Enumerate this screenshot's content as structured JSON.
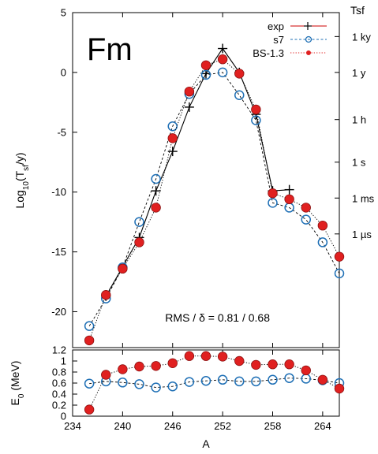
{
  "chart_data": [
    {
      "type": "line",
      "panel": "upper",
      "label": "Fm",
      "ylabel": "Log10(Tsf/y)",
      "right_axis_title": "Tsf",
      "right_ticks": [
        {
          "label": "1 ky",
          "value": 3
        },
        {
          "label": "1 y",
          "value": 0
        },
        {
          "label": "1 h",
          "value": -3.94
        },
        {
          "label": "1 s",
          "value": -7.5
        },
        {
          "label": "1 ms",
          "value": -10.5
        },
        {
          "label": "1 µs",
          "value": -13.5
        }
      ],
      "xlim": [
        234,
        266
      ],
      "ylim": [
        -23,
        5
      ],
      "xticks": [
        234,
        240,
        246,
        252,
        258,
        264
      ],
      "yticks": [
        5,
        0,
        -5,
        -10,
        -15,
        -20
      ],
      "annotation": "RMS / δ = 0.81 / 0.68",
      "legend_position": "top-right",
      "series": [
        {
          "name": "exp",
          "color": "#cc0000",
          "marker": "plus",
          "line": "solid",
          "x": [
            238,
            242,
            244,
            246,
            248,
            250,
            252,
            254,
            256,
            258,
            260
          ],
          "y": [
            -18.7,
            -13.8,
            -9.9,
            -6.6,
            -2.9,
            -0.1,
            2.0,
            0.0,
            -3.5,
            -9.9,
            -9.8
          ]
        },
        {
          "name": "s7",
          "color": "#1e6fb5",
          "marker": "circle-open",
          "line": "dashed",
          "x": [
            236,
            238,
            240,
            242,
            244,
            246,
            248,
            250,
            252,
            254,
            256,
            258,
            260,
            262,
            264,
            266
          ],
          "y": [
            -21.2,
            -18.9,
            -16.3,
            -12.5,
            -8.9,
            -4.5,
            -1.8,
            -0.2,
            0.0,
            -1.9,
            -4.0,
            -10.9,
            -11.3,
            -12.3,
            -14.2,
            -16.8
          ]
        },
        {
          "name": "BS-1.3",
          "color": "#e02020",
          "marker": "circle-filled",
          "line": "dotted",
          "x": [
            236,
            238,
            240,
            242,
            244,
            246,
            248,
            250,
            252,
            254,
            256,
            258,
            260,
            262,
            264,
            266
          ],
          "y": [
            -22.4,
            -18.6,
            -16.4,
            -14.2,
            -11.3,
            -5.5,
            -1.6,
            0.6,
            1.1,
            -0.1,
            -3.1,
            -10.1,
            -10.6,
            -11.3,
            -12.8,
            -15.4
          ]
        }
      ]
    },
    {
      "type": "line",
      "panel": "lower",
      "xlabel": "A",
      "ylabel": "E0 (MeV)",
      "xlim": [
        234,
        266
      ],
      "ylim": [
        0,
        1.2
      ],
      "xticks": [
        234,
        240,
        246,
        252,
        258,
        264
      ],
      "yticks": [
        0,
        0.2,
        0.4,
        0.6,
        0.8,
        1,
        1.2
      ],
      "series": [
        {
          "name": "s7",
          "color": "#1e6fb5",
          "marker": "circle-open",
          "line": "dashed",
          "x": [
            236,
            238,
            240,
            242,
            244,
            246,
            248,
            250,
            252,
            254,
            256,
            258,
            260,
            262,
            264,
            266
          ],
          "y": [
            0.59,
            0.63,
            0.61,
            0.58,
            0.52,
            0.54,
            0.62,
            0.64,
            0.66,
            0.63,
            0.63,
            0.66,
            0.69,
            0.68,
            0.65,
            0.6
          ]
        },
        {
          "name": "BS-1.3",
          "color": "#e02020",
          "marker": "circle-filled",
          "line": "dotted",
          "x": [
            236,
            238,
            240,
            242,
            244,
            246,
            248,
            250,
            252,
            254,
            256,
            258,
            260,
            262,
            264,
            266
          ],
          "y": [
            0.12,
            0.75,
            0.85,
            0.9,
            0.91,
            0.96,
            1.09,
            1.09,
            1.08,
            1.0,
            0.93,
            0.94,
            0.94,
            0.83,
            0.66,
            0.5
          ]
        }
      ]
    }
  ]
}
